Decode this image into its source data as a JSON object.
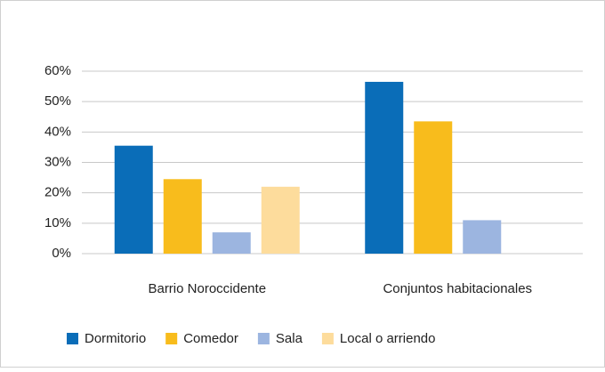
{
  "chart_data": {
    "type": "bar",
    "categories": [
      "Barrio Noroccidente",
      "Conjuntos habitacionales"
    ],
    "series": [
      {
        "name": "Dormitorio",
        "color": "#0a6db8",
        "values": [
          35.5,
          56.5
        ]
      },
      {
        "name": "Comedor",
        "color": "#f8bc1c",
        "values": [
          24.5,
          43.5
        ]
      },
      {
        "name": "Sala",
        "color": "#9cb5e0",
        "values": [
          7,
          11
        ]
      },
      {
        "name": "Local o arriendo",
        "color": "#fddc9c",
        "values": [
          22,
          null
        ]
      }
    ],
    "ylim": [
      0,
      60
    ],
    "yticks": [
      {
        "value": 0,
        "label": "0%"
      },
      {
        "value": 10,
        "label": "10%"
      },
      {
        "value": 20,
        "label": "20%"
      },
      {
        "value": 30,
        "label": "30%"
      },
      {
        "value": 40,
        "label": "40%"
      },
      {
        "value": 50,
        "label": "50%"
      },
      {
        "value": 60,
        "label": "60%"
      }
    ],
    "grid": true,
    "legend": "bottom"
  }
}
